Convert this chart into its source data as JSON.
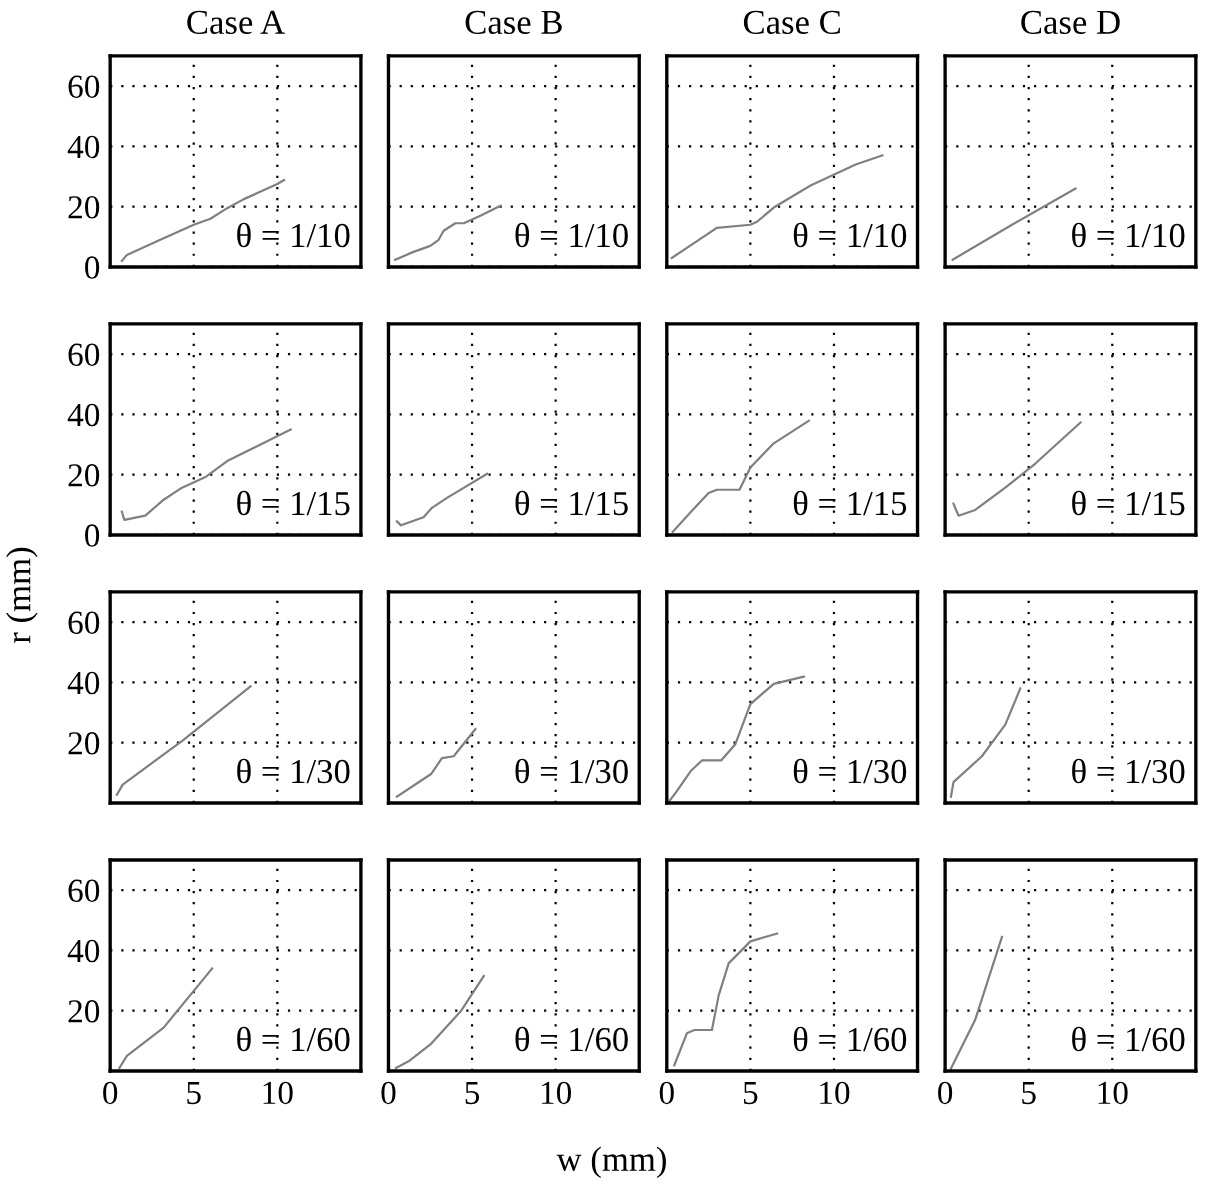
{
  "chart_data": [
    {
      "type": "line",
      "title": "Case A",
      "annotations": [
        "θ = 1/10"
      ],
      "tick_labels": "y",
      "xlim": [
        0,
        15
      ],
      "xticks": [
        0,
        5,
        10
      ],
      "ylim": [
        0,
        70
      ],
      "yticks": [
        0,
        20,
        40,
        60
      ],
      "grid": true,
      "series": [
        {
          "color": "#808080",
          "x": [
            0.7,
            1,
            3,
            5,
            6,
            7,
            8,
            10,
            10.4
          ],
          "values": [
            2,
            4,
            9,
            14,
            16,
            19.5,
            22.5,
            27.5,
            28.8
          ]
        }
      ]
    },
    {
      "type": "line",
      "title": "Case B",
      "annotations": [
        "θ = 1/10"
      ],
      "tick_labels": false,
      "xlim": [
        0,
        15
      ],
      "xticks": [
        0,
        5,
        10
      ],
      "ylim": [
        0,
        70
      ],
      "yticks": [
        0,
        20,
        40,
        60
      ],
      "grid": true,
      "series": [
        {
          "color": "#808080",
          "x": [
            0.4,
            1.5,
            2.5,
            3,
            3.3,
            4,
            4.5,
            5.5,
            6.7
          ],
          "values": [
            2.4,
            5,
            7,
            9,
            12,
            14.5,
            14.5,
            17,
            20.3
          ]
        }
      ]
    },
    {
      "type": "line",
      "title": "Case C",
      "annotations": [
        "θ = 1/10"
      ],
      "tick_labels": false,
      "xlim": [
        0,
        15
      ],
      "xticks": [
        0,
        5,
        10
      ],
      "ylim": [
        0,
        70
      ],
      "yticks": [
        0,
        20,
        40,
        60
      ],
      "grid": true,
      "series": [
        {
          "color": "#808080",
          "x": [
            0.3,
            2.3,
            3,
            5,
            5.4,
            6.4,
            8.6,
            11.3,
            12.9
          ],
          "values": [
            3,
            10.4,
            13,
            14,
            15,
            19.7,
            27,
            34,
            37
          ]
        }
      ]
    },
    {
      "type": "line",
      "title": "Case D",
      "annotations": [
        "θ = 1/10"
      ],
      "tick_labels": false,
      "xlim": [
        0,
        15
      ],
      "xticks": [
        0,
        5,
        10
      ],
      "ylim": [
        0,
        70
      ],
      "yticks": [
        0,
        20,
        40,
        60
      ],
      "grid": true,
      "series": [
        {
          "color": "#808080",
          "x": [
            0.45,
            4,
            7.8
          ],
          "values": [
            2.4,
            14,
            26
          ]
        }
      ]
    },
    {
      "type": "line",
      "annotations": [
        "θ = 1/15"
      ],
      "tick_labels": "y",
      "xlim": [
        0,
        15
      ],
      "xticks": [
        0,
        5,
        10
      ],
      "ylim": [
        0,
        70
      ],
      "yticks": [
        0,
        20,
        40,
        60
      ],
      "grid": true,
      "series": [
        {
          "color": "#808080",
          "x": [
            0.7,
            0.85,
            2.1,
            3.2,
            4.3,
            5.7,
            7,
            10.8
          ],
          "values": [
            7.7,
            5,
            6.4,
            11.7,
            15.7,
            19.2,
            24.5,
            35
          ]
        }
      ]
    },
    {
      "type": "line",
      "annotations": [
        "θ = 1/15"
      ],
      "tick_labels": false,
      "xlim": [
        0,
        15
      ],
      "xticks": [
        0,
        5,
        10
      ],
      "ylim": [
        0,
        70
      ],
      "yticks": [
        0,
        20,
        40,
        60
      ],
      "grid": true,
      "series": [
        {
          "color": "#808080",
          "x": [
            0.5,
            0.75,
            2.1,
            2.6,
            3.5,
            5.9
          ],
          "values": [
            4.5,
            3.2,
            5.9,
            9,
            12.3,
            20.3
          ]
        }
      ]
    },
    {
      "type": "line",
      "annotations": [
        "θ = 1/15"
      ],
      "tick_labels": false,
      "xlim": [
        0,
        15
      ],
      "xticks": [
        0,
        5,
        10
      ],
      "ylim": [
        0,
        70
      ],
      "yticks": [
        0,
        20,
        40,
        60
      ],
      "grid": true,
      "series": [
        {
          "color": "#808080",
          "x": [
            0.35,
            1.45,
            2.5,
            3,
            4.35,
            5,
            6.4,
            8.5
          ],
          "values": [
            1,
            7.7,
            13.9,
            15,
            15,
            22.4,
            30.4,
            37.9
          ]
        }
      ]
    },
    {
      "type": "line",
      "annotations": [
        "θ = 1/15"
      ],
      "tick_labels": false,
      "xlim": [
        0,
        15
      ],
      "xticks": [
        0,
        5,
        10
      ],
      "ylim": [
        0,
        70
      ],
      "yticks": [
        0,
        20,
        40,
        60
      ],
      "grid": true,
      "series": [
        {
          "color": "#808080",
          "x": [
            0.5,
            0.8,
            1.8,
            3.6,
            5.4,
            8.1
          ],
          "values": [
            10.4,
            6.4,
            8.3,
            15.7,
            23.7,
            37.3
          ]
        }
      ]
    },
    {
      "type": "line",
      "annotations": [
        "θ = 1/30"
      ],
      "ylabel": "r (mm)",
      "tick_labels": "y",
      "xlim": [
        0,
        15
      ],
      "xticks": [
        0,
        5,
        10
      ],
      "ylim": [
        0,
        70
      ],
      "yticks": [
        20,
        40,
        60
      ],
      "grid": true,
      "series": [
        {
          "color": "#808080",
          "x": [
            0.4,
            0.75,
            4.35,
            8.4
          ],
          "values": [
            2.7,
            6.1,
            20.8,
            38.7
          ]
        }
      ]
    },
    {
      "type": "line",
      "annotations": [
        "θ = 1/30"
      ],
      "tick_labels": false,
      "xlim": [
        0,
        15
      ],
      "xticks": [
        0,
        5,
        10
      ],
      "ylim": [
        0,
        70
      ],
      "yticks": [
        20,
        40,
        60
      ],
      "grid": true,
      "series": [
        {
          "color": "#808080",
          "x": [
            0.5,
            2.55,
            3.2,
            3.9,
            5.2
          ],
          "values": [
            2.1,
            9.6,
            14.9,
            15.5,
            24.5
          ]
        }
      ]
    },
    {
      "type": "line",
      "annotations": [
        "θ = 1/30"
      ],
      "tick_labels": false,
      "xlim": [
        0,
        15
      ],
      "xticks": [
        0,
        5,
        10
      ],
      "ylim": [
        0,
        70
      ],
      "yticks": [
        20,
        40,
        60
      ],
      "grid": true,
      "series": [
        {
          "color": "#808080",
          "x": [
            0.1,
            0.55,
            1.45,
            2.1,
            3.25,
            4.1,
            5,
            6.4,
            8.2
          ],
          "values": [
            0.3,
            3.5,
            10.7,
            14.1,
            14.1,
            19.5,
            32.8,
            39.5,
            41.9
          ]
        }
      ]
    },
    {
      "type": "line",
      "annotations": [
        "θ = 1/30"
      ],
      "tick_labels": false,
      "xlim": [
        0,
        15
      ],
      "xticks": [
        0,
        5,
        10
      ],
      "ylim": [
        0,
        70
      ],
      "yticks": [
        20,
        40,
        60
      ],
      "grid": true,
      "series": [
        {
          "color": "#808080",
          "x": [
            0.35,
            0.5,
            2.2,
            3.6,
            4.5
          ],
          "values": [
            2.1,
            6.9,
            15.5,
            26,
            38
          ]
        }
      ]
    },
    {
      "type": "line",
      "annotations": [
        "θ = 1/60"
      ],
      "xlim": [
        0,
        15
      ],
      "xticks": [
        0,
        5,
        10
      ],
      "ylim": [
        0,
        70
      ],
      "yticks": [
        20,
        40,
        60
      ],
      "grid": true,
      "series": [
        {
          "color": "#808080",
          "x": [
            0.55,
            1,
            3.2,
            6.1
          ],
          "values": [
            1,
            5,
            14.4,
            34
          ]
        }
      ]
    },
    {
      "type": "line",
      "annotations": [
        "θ = 1/60"
      ],
      "xlabel": "w (mm)",
      "tick_labels": "x",
      "xlim": [
        0,
        15
      ],
      "xticks": [
        0,
        5,
        10
      ],
      "ylim": [
        0,
        70
      ],
      "yticks": [
        20,
        40,
        60
      ],
      "grid": true,
      "series": [
        {
          "color": "#808080",
          "x": [
            0.45,
            1.2,
            2.55,
            4.35,
            5.7
          ],
          "values": [
            1,
            3.2,
            9,
            20,
            31.5
          ]
        }
      ]
    },
    {
      "type": "line",
      "annotations": [
        "θ = 1/60"
      ],
      "tick_labels": "x",
      "xlim": [
        0,
        15
      ],
      "xticks": [
        0,
        5,
        10
      ],
      "ylim": [
        0,
        70
      ],
      "yticks": [
        20,
        40,
        60
      ],
      "grid": true,
      "series": [
        {
          "color": "#808080",
          "x": [
            0.45,
            1.2,
            1.65,
            2.7,
            3.1,
            3.7,
            5,
            6.6
          ],
          "values": [
            1.9,
            12.5,
            13.6,
            13.6,
            25,
            35.7,
            43,
            45.6
          ]
        }
      ]
    },
    {
      "type": "line",
      "annotations": [
        "θ = 1/60"
      ],
      "tick_labels": "x",
      "xlim": [
        0,
        15
      ],
      "xticks": [
        0,
        5,
        10
      ],
      "ylim": [
        0,
        70
      ],
      "yticks": [
        20,
        40,
        60
      ],
      "grid": true,
      "series": [
        {
          "color": "#808080",
          "x": [
            0.35,
            1.8,
            3.4
          ],
          "values": [
            0.8,
            17,
            44.5
          ]
        }
      ]
    }
  ]
}
